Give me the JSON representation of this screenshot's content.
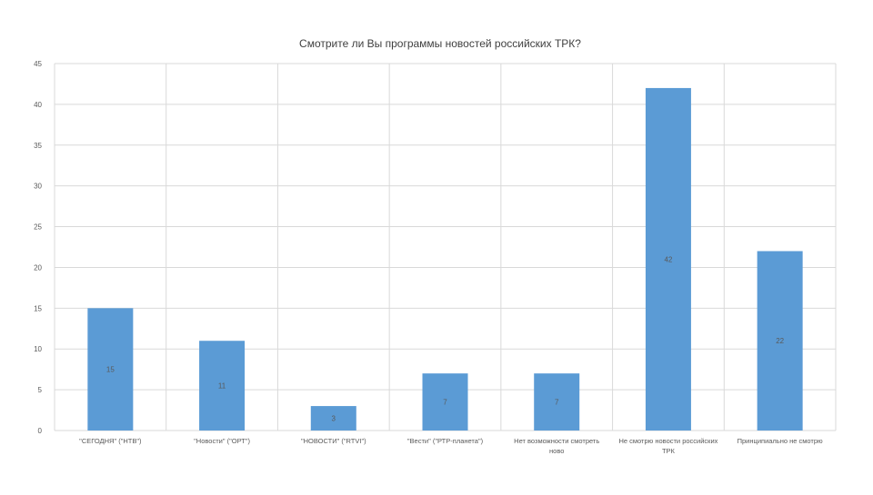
{
  "chart_data": {
    "type": "bar",
    "title": "Смотрите ли Вы программы новостей российских ТРК?",
    "xlabel": "",
    "ylabel": "",
    "ylim": [
      0,
      45
    ],
    "yticks": [
      "0",
      "5",
      "10",
      "15",
      "20",
      "25",
      "30",
      "35",
      "40",
      "45"
    ],
    "grid": true,
    "legend": "none",
    "categories": [
      [
        "\"СЕГОДНЯ\" (\"НТВ\")"
      ],
      [
        "\"Новости\" (\"ОРТ\")"
      ],
      [
        "\"НОВОСТИ\" (\"RTVI\")"
      ],
      [
        "\"Вести\" (\"РТР-планета\")"
      ],
      [
        "Нет возможности смотреть",
        "ново"
      ],
      [
        "Не смотрю новости российских",
        "ТРК"
      ],
      [
        "Принципиально не смотрю"
      ]
    ],
    "values": [
      15,
      11,
      3,
      7,
      7,
      42,
      22
    ],
    "data_labels": [
      "15",
      "11",
      "3",
      "7",
      "7",
      "42",
      "22"
    ],
    "colors": {
      "bar": "#5b9bd5",
      "grid": "#d9d9d9",
      "text": "#595959",
      "title": "#404040"
    }
  }
}
